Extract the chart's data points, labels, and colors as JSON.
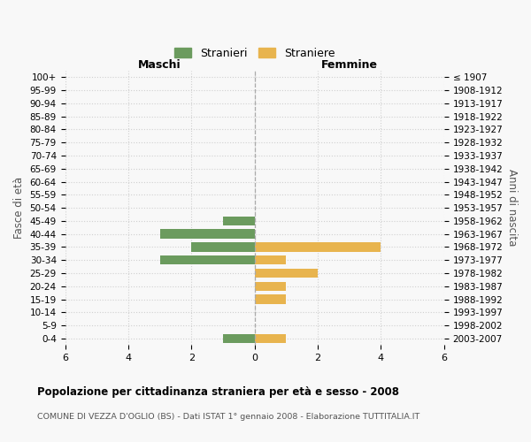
{
  "age_groups": [
    "100+",
    "95-99",
    "90-94",
    "85-89",
    "80-84",
    "75-79",
    "70-74",
    "65-69",
    "60-64",
    "55-59",
    "50-54",
    "45-49",
    "40-44",
    "35-39",
    "30-34",
    "25-29",
    "20-24",
    "15-19",
    "10-14",
    "5-9",
    "0-4"
  ],
  "birth_years": [
    "≤ 1907",
    "1908-1912",
    "1913-1917",
    "1918-1922",
    "1923-1927",
    "1928-1932",
    "1933-1937",
    "1938-1942",
    "1943-1947",
    "1948-1952",
    "1953-1957",
    "1958-1962",
    "1963-1967",
    "1968-1972",
    "1973-1977",
    "1978-1982",
    "1983-1987",
    "1988-1992",
    "1993-1997",
    "1998-2002",
    "2003-2007"
  ],
  "males": [
    0,
    0,
    0,
    0,
    0,
    0,
    0,
    0,
    0,
    0,
    0,
    1,
    3,
    2,
    3,
    0,
    0,
    0,
    0,
    0,
    1
  ],
  "females": [
    0,
    0,
    0,
    0,
    0,
    0,
    0,
    0,
    0,
    0,
    0,
    0,
    0,
    4,
    1,
    2,
    1,
    1,
    0,
    0,
    1
  ],
  "male_color": "#6b9b5e",
  "female_color": "#e8b44e",
  "title": "Popolazione per cittadinanza straniera per età e sesso - 2008",
  "subtitle": "COMUNE DI VEZZA D'OGLIO (BS) - Dati ISTAT 1° gennaio 2008 - Elaborazione TUTTITALIA.IT",
  "ylabel_left": "Fasce di età",
  "ylabel_right": "Anni di nascita",
  "xlabel_left": "Maschi",
  "xlabel_right": "Femmine",
  "legend_male": "Stranieri",
  "legend_female": "Straniere",
  "xlim": 6,
  "bg_color": "#f8f8f8",
  "grid_color": "#d0d0d0"
}
